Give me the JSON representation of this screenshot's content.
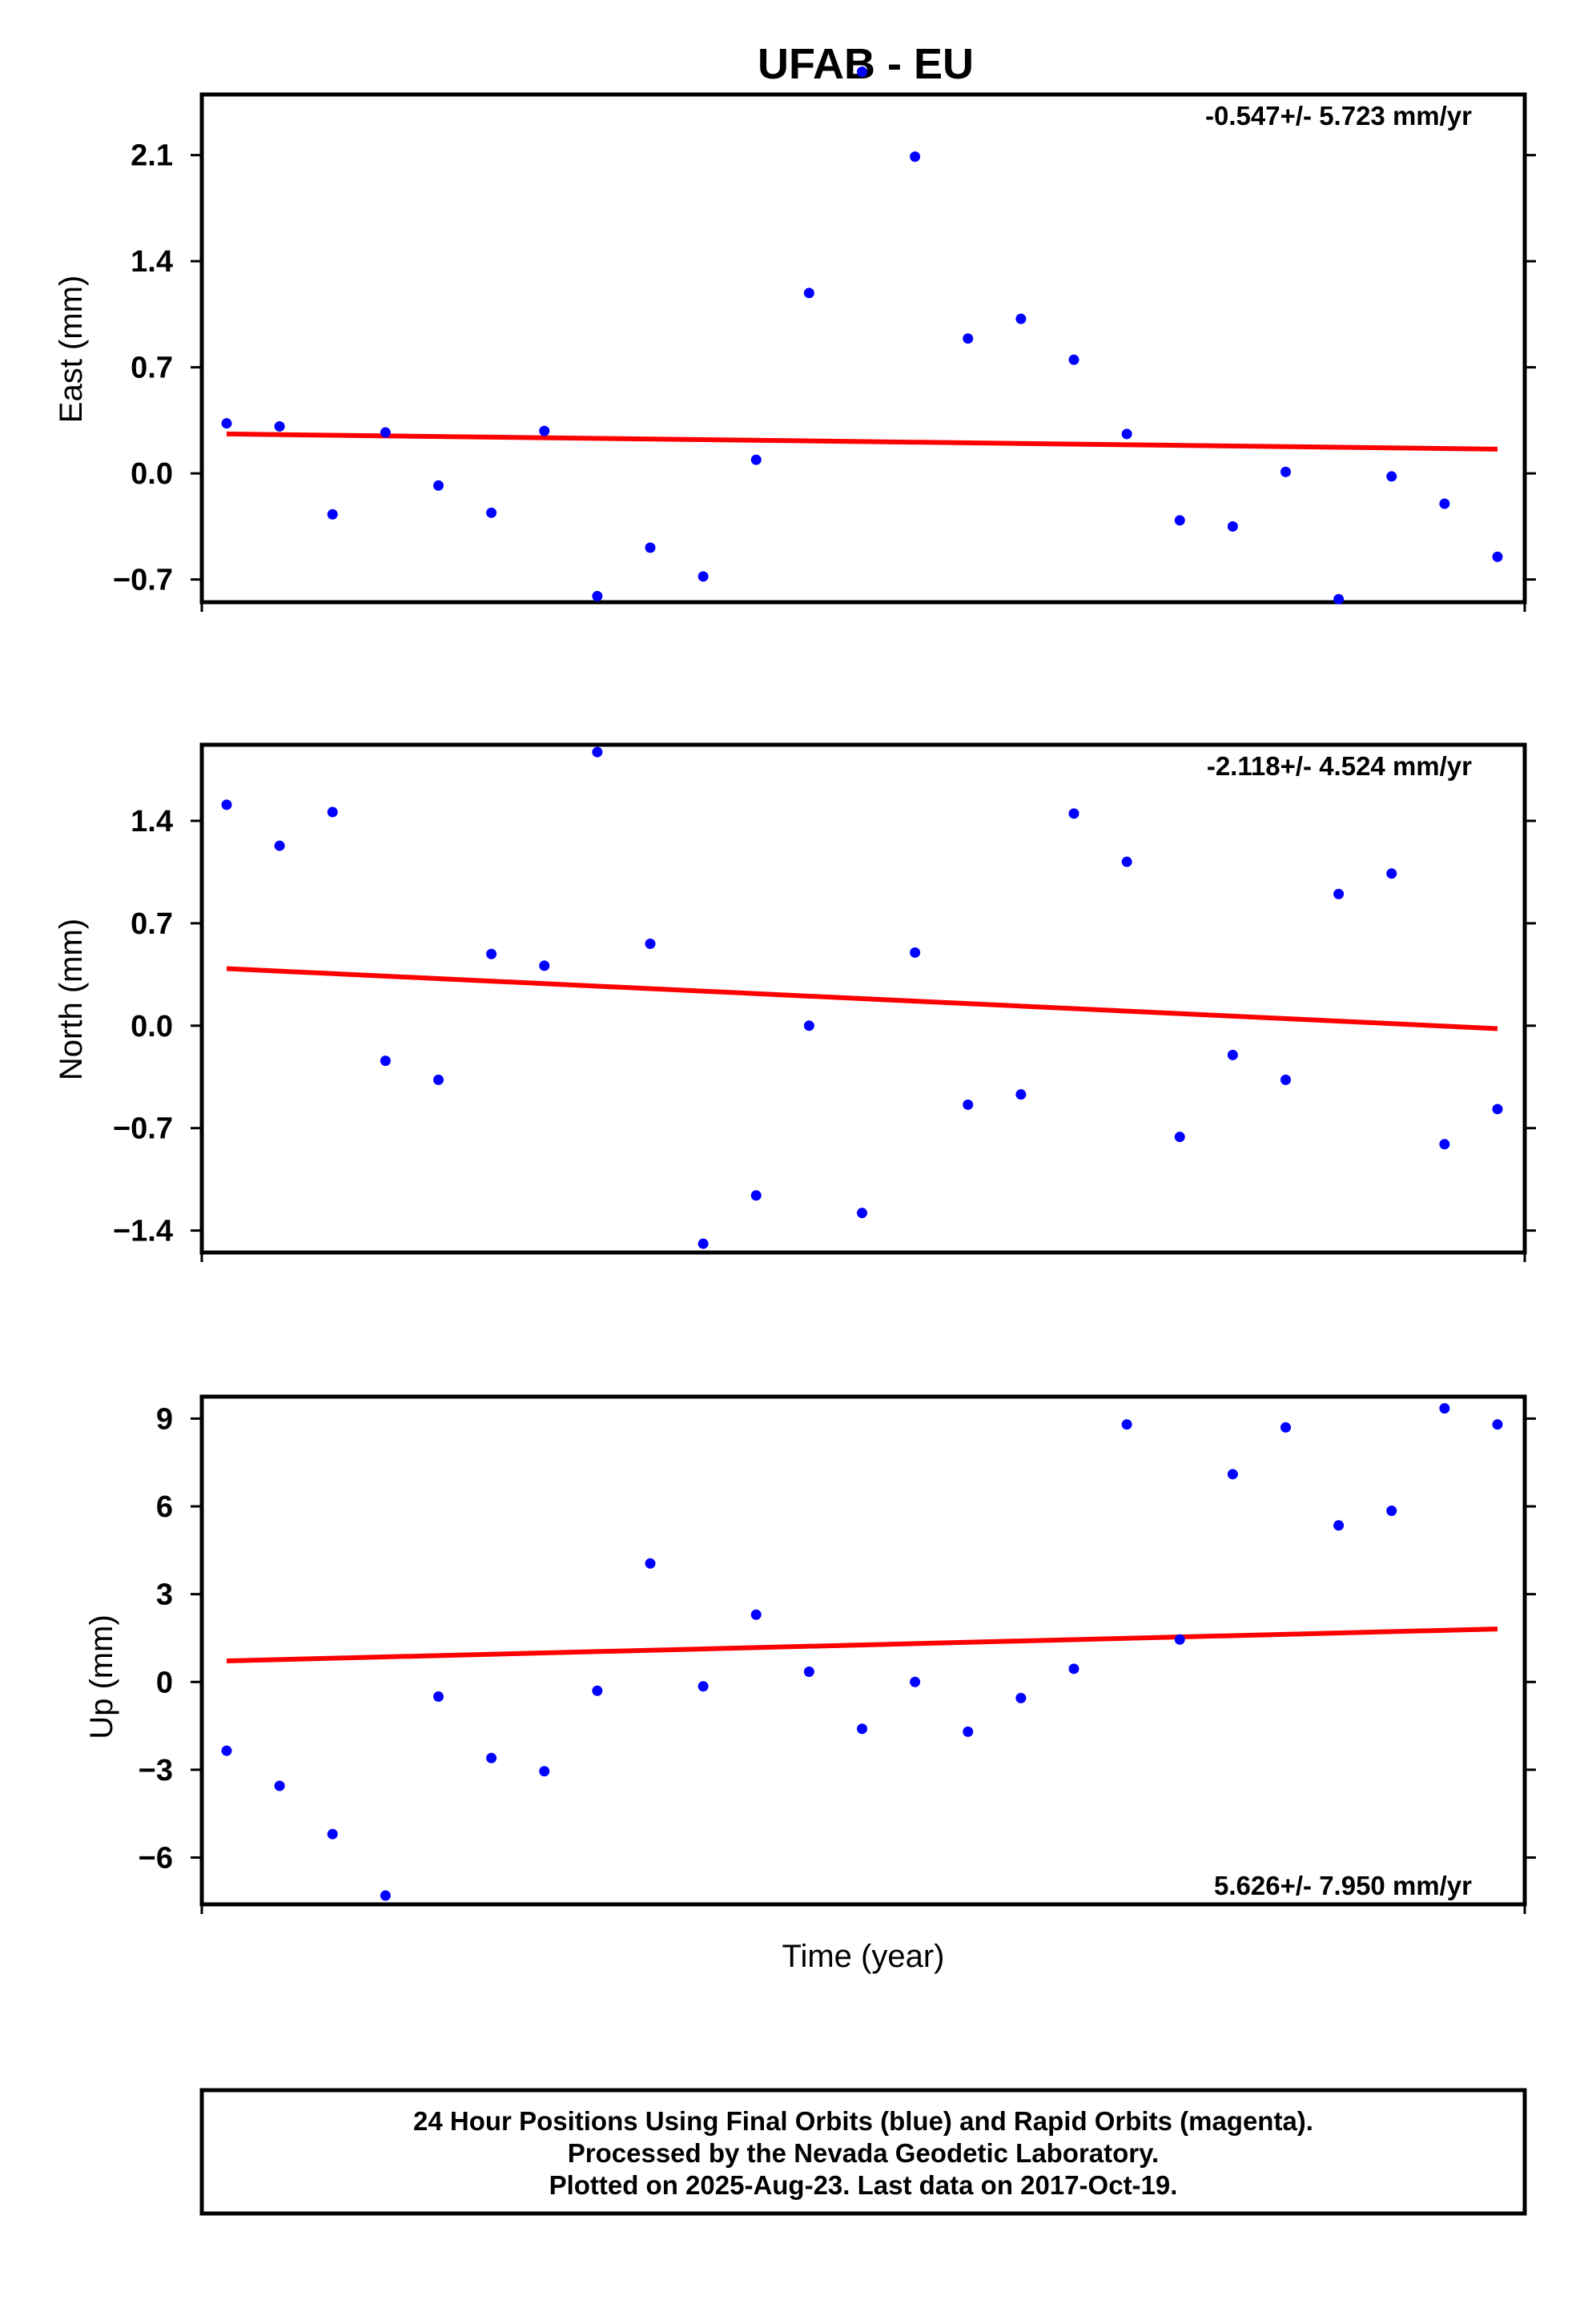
{
  "chart_data": {
    "type": "scatter",
    "title": "UFAB - EU",
    "xlabel": "Time (year)",
    "panels": [
      {
        "name": "east",
        "ylabel": "East (mm)",
        "rate_text": "-0.547+/- 5.723 mm/yr",
        "rate_position": "top-right",
        "ylim": [
          -0.85,
          2.5
        ],
        "yticks": [
          -0.7,
          0.0,
          0.7,
          1.4,
          2.1
        ],
        "ytick_labels": [
          "−0.7",
          "0.0",
          "0.7",
          "1.4",
          "2.1"
        ],
        "values": [
          0.33,
          0.31,
          -0.27,
          0.27,
          -0.08,
          -0.26,
          0.28,
          -0.81,
          -0.49,
          -0.68,
          0.09,
          1.19,
          2.65,
          2.09,
          0.89,
          1.02,
          0.75,
          0.26,
          -0.31,
          -0.35,
          0.01,
          -0.83,
          -0.02,
          -0.2,
          -0.55
        ],
        "trend": [
          0.26,
          0.16
        ]
      },
      {
        "name": "north",
        "ylabel": "North (mm)",
        "rate_text": "-2.118+/- 4.524 mm/yr",
        "rate_position": "top-right",
        "ylim": [
          -1.55,
          1.92
        ],
        "yticks": [
          -1.4,
          -0.7,
          0.0,
          0.7,
          1.4
        ],
        "ytick_labels": [
          "−1.4",
          "−0.7",
          "0.0",
          "0.7",
          "1.4"
        ],
        "values": [
          1.51,
          1.23,
          1.46,
          -0.24,
          -0.37,
          0.49,
          0.41,
          1.87,
          0.56,
          -1.49,
          -1.16,
          0.0,
          -1.28,
          0.5,
          -0.54,
          -0.47,
          1.45,
          1.12,
          -0.76,
          -0.2,
          -0.37,
          0.9,
          1.04,
          -0.81,
          -0.57
        ],
        "trend": [
          0.39,
          -0.02
        ]
      },
      {
        "name": "up",
        "ylabel": "Up (mm)",
        "rate_text": "5.626+/- 7.950 mm/yr",
        "rate_position": "bottom-right",
        "ylim": [
          -7.6,
          9.75
        ],
        "yticks": [
          -6,
          -3,
          0,
          3,
          6,
          9
        ],
        "ytick_labels": [
          "−6",
          "−3",
          "0",
          "3",
          "6",
          "9"
        ],
        "values": [
          -2.35,
          -3.55,
          -5.2,
          -7.3,
          -0.5,
          -2.6,
          -3.05,
          -0.3,
          4.05,
          -0.15,
          2.3,
          0.35,
          -1.6,
          0.0,
          -1.7,
          -0.55,
          0.45,
          8.8,
          1.45,
          7.1,
          8.7,
          5.35,
          5.85,
          9.35,
          8.8
        ],
        "trend": [
          0.72,
          1.81
        ]
      }
    ],
    "point_color": "#0000ff",
    "trend_color": "#ff0000",
    "grid": false
  },
  "footer": {
    "line1": "24 Hour Positions Using Final Orbits (blue) and Rapid Orbits (magenta).",
    "line2": "Processed by the Nevada Geodetic Laboratory.",
    "line3": "Plotted on 2025-Aug-23. Last data on 2017-Oct-19."
  }
}
